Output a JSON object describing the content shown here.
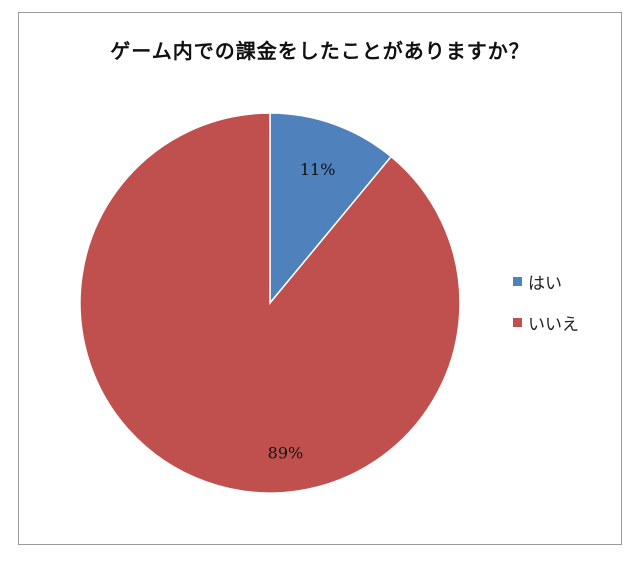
{
  "chart_data": {
    "type": "pie",
    "title": "ゲーム内での課金をしたことがありますか？",
    "categories": [
      "はい",
      "いいえ"
    ],
    "values": [
      11,
      89
    ],
    "data_labels": [
      "11%",
      "89%"
    ],
    "colors": [
      "#4f81bd",
      "#c0504d"
    ],
    "legend": "right"
  }
}
